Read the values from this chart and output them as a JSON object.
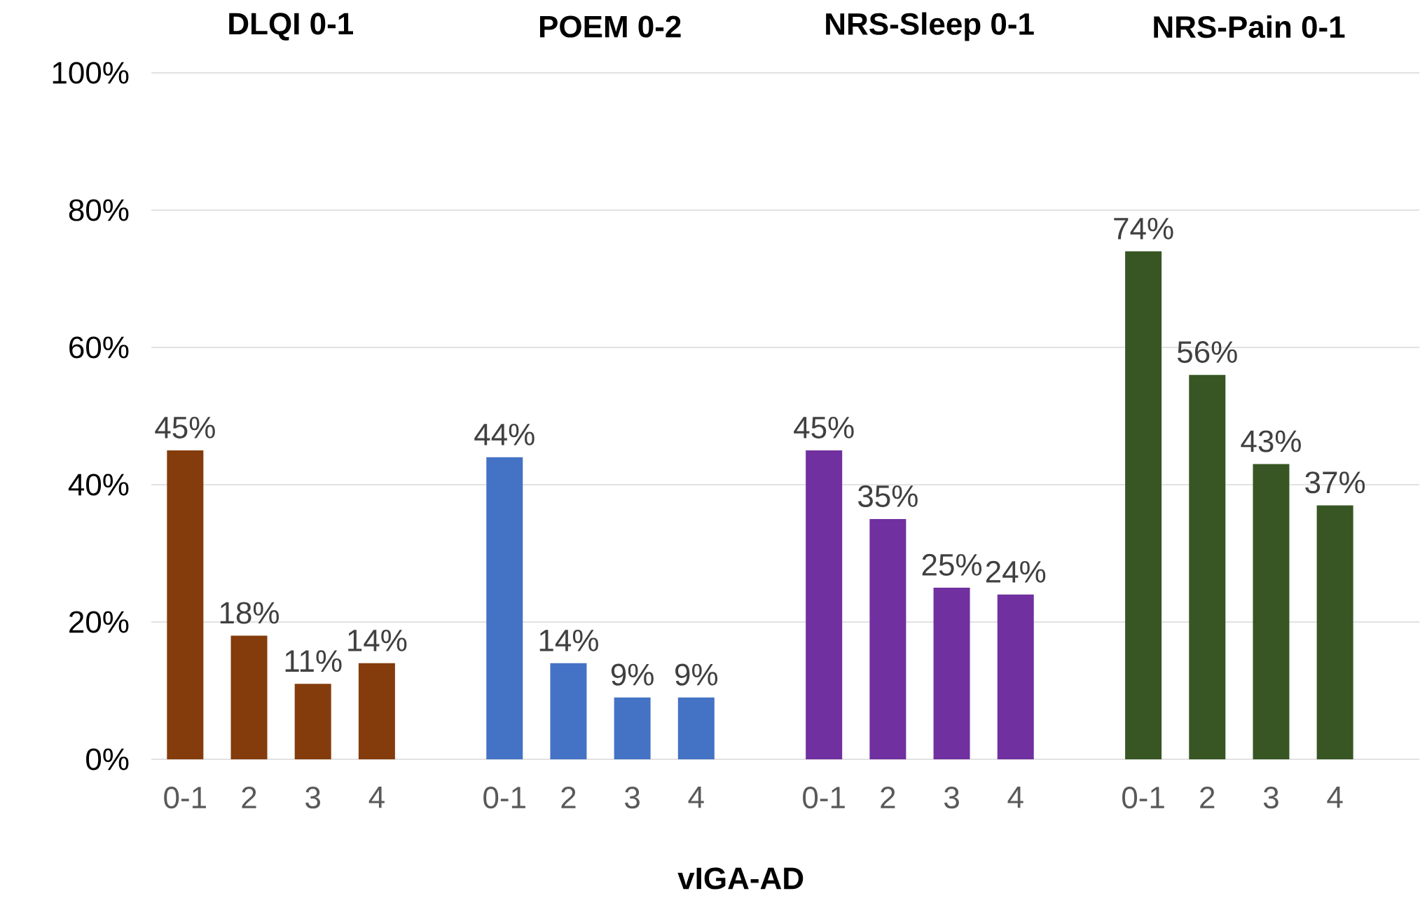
{
  "chart_data": [
    {
      "type": "bar",
      "title": "DLQI 0-1",
      "categories": [
        "0-1",
        "2",
        "3",
        "4"
      ],
      "values": [
        45,
        18,
        11,
        14
      ],
      "value_labels": [
        "45%",
        "18%",
        "11%",
        "14%"
      ],
      "color": "#843c0c",
      "ylim": [
        0,
        100
      ],
      "yticks": [
        {
          "value": 0,
          "label": "0%"
        },
        {
          "value": 20,
          "label": "20%"
        },
        {
          "value": 40,
          "label": "40%"
        },
        {
          "value": 60,
          "label": "60%"
        },
        {
          "value": 80,
          "label": "80%"
        },
        {
          "value": 100,
          "label": "100%"
        }
      ],
      "grid": "y"
    },
    {
      "type": "bar",
      "title": "POEM 0-2",
      "xlabel": "vIGA-AD",
      "categories": [
        "0-1",
        "2",
        "3",
        "4"
      ],
      "values": [
        44,
        14,
        9,
        9
      ],
      "value_labels": [
        "44%",
        "14%",
        "9%",
        "9%"
      ],
      "color": "#4472c4",
      "ylim": [
        0,
        100
      ],
      "yticks": [
        0,
        20,
        40,
        60,
        80,
        100
      ],
      "grid": "y",
      "tick_labels": "x"
    },
    {
      "type": "bar",
      "title": "NRS-Sleep 0-1",
      "categories": [
        "0-1",
        "2",
        "3",
        "4"
      ],
      "values": [
        45,
        35,
        25,
        24
      ],
      "value_labels": [
        "45%",
        "35%",
        "25%",
        "24%"
      ],
      "color": "#7030a0",
      "ylim": [
        0,
        100
      ],
      "yticks": [
        0,
        20,
        40,
        60,
        80,
        100
      ],
      "grid": "y",
      "tick_labels": "x"
    },
    {
      "type": "bar",
      "title": "NRS-Pain 0-1",
      "categories": [
        "0-1",
        "2",
        "3",
        "4"
      ],
      "values": [
        74,
        56,
        43,
        37
      ],
      "value_labels": [
        "74%",
        "56%",
        "43%",
        "37%"
      ],
      "color": "#375623",
      "ylim": [
        0,
        100
      ],
      "yticks": [
        0,
        20,
        40,
        60,
        80,
        100
      ],
      "grid": "y",
      "tick_labels": "x"
    }
  ]
}
